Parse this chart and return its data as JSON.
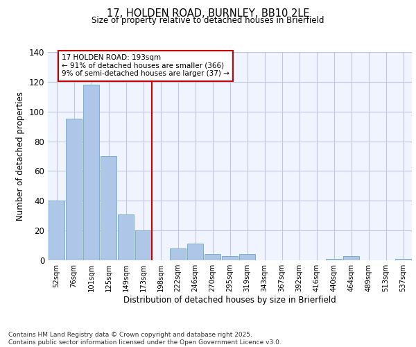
{
  "title": "17, HOLDEN ROAD, BURNLEY, BB10 2LE",
  "subtitle": "Size of property relative to detached houses in Brierfield",
  "xlabel": "Distribution of detached houses by size in Brierfield",
  "ylabel": "Number of detached properties",
  "bar_labels": [
    "52sqm",
    "76sqm",
    "101sqm",
    "125sqm",
    "149sqm",
    "173sqm",
    "198sqm",
    "222sqm",
    "246sqm",
    "270sqm",
    "295sqm",
    "319sqm",
    "343sqm",
    "367sqm",
    "392sqm",
    "416sqm",
    "440sqm",
    "464sqm",
    "489sqm",
    "513sqm",
    "537sqm"
  ],
  "bar_values": [
    40,
    95,
    118,
    70,
    31,
    20,
    0,
    8,
    11,
    4,
    3,
    4,
    0,
    0,
    0,
    0,
    1,
    3,
    0,
    0,
    1
  ],
  "bar_color": "#aec6e8",
  "bar_edgecolor": "#7aaed6",
  "vline_color": "#cc0000",
  "annotation_text": "17 HOLDEN ROAD: 193sqm\n← 91% of detached houses are smaller (366)\n9% of semi-detached houses are larger (37) →",
  "annotation_box_edgecolor": "#cc0000",
  "ylim": [
    0,
    140
  ],
  "yticks": [
    0,
    20,
    40,
    60,
    80,
    100,
    120,
    140
  ],
  "footer_line1": "Contains HM Land Registry data © Crown copyright and database right 2025.",
  "footer_line2": "Contains public sector information licensed under the Open Government Licence v3.0.",
  "background_color": "#f0f4ff",
  "grid_color": "#c0c8e0"
}
